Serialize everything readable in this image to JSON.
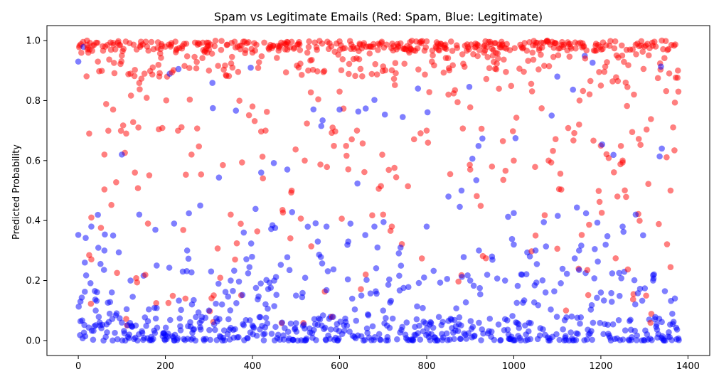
{
  "chart_data": {
    "type": "scatter",
    "title": "Spam vs Legitimate Emails (Red: Spam, Blue: Legitimate)",
    "xlabel": "",
    "ylabel": "Predicted Probability",
    "xlim": [
      -72,
      1450
    ],
    "ylim": [
      -0.05,
      1.05
    ],
    "xticks": [
      0,
      200,
      400,
      600,
      800,
      1000,
      1200,
      1400
    ],
    "yticks": [
      0.0,
      0.2,
      0.4,
      0.6,
      0.8,
      1.0
    ],
    "grid": false,
    "n_points": 1380,
    "series": [
      {
        "color": "#ff0000",
        "alpha": 0.5,
        "points_sample": [
          [
            20,
            1.0
          ],
          [
            25,
            0.69
          ],
          [
            30,
            0.41
          ],
          [
            45,
            0.93
          ],
          [
            60,
            0.62
          ],
          [
            80,
            0.77
          ],
          [
            100,
            0.95
          ],
          [
            110,
            0.69
          ],
          [
            130,
            0.56
          ],
          [
            160,
            0.39
          ],
          [
            200,
            0.98
          ],
          [
            260,
            0.62
          ],
          [
            300,
            0.9
          ],
          [
            350,
            0.42
          ],
          [
            360,
            0.27
          ],
          [
            400,
            0.96
          ],
          [
            430,
            0.7
          ],
          [
            480,
            0.97
          ],
          [
            490,
            0.5
          ],
          [
            520,
            0.6
          ],
          [
            560,
            0.99
          ],
          [
            600,
            0.83
          ],
          [
            640,
            0.7
          ],
          [
            660,
            0.22
          ],
          [
            700,
            0.42
          ],
          [
            720,
            0.38
          ],
          [
            760,
            0.96
          ],
          [
            800,
            0.7
          ],
          [
            850,
            0.82
          ],
          [
            900,
            0.57
          ],
          [
            950,
            0.58
          ],
          [
            1000,
            0.6
          ],
          [
            1050,
            0.35
          ],
          [
            1080,
            0.6
          ],
          [
            1120,
            0.1
          ],
          [
            1150,
            0.72
          ],
          [
            1200,
            0.85
          ],
          [
            1250,
            0.6
          ],
          [
            1300,
            0.98
          ],
          [
            1340,
            1.0
          ],
          [
            1360,
            0.5
          ],
          [
            1378,
            0.83
          ]
        ]
      },
      {
        "color": "#0000ff",
        "alpha": 0.5,
        "points_sample": [
          [
            0,
            0.93
          ],
          [
            5,
            0.13
          ],
          [
            15,
            0.26
          ],
          [
            30,
            0.38
          ],
          [
            40,
            0.1
          ],
          [
            60,
            0.3
          ],
          [
            80,
            0.35
          ],
          [
            100,
            0.62
          ],
          [
            120,
            0.2
          ],
          [
            140,
            0.42
          ],
          [
            180,
            0.25
          ],
          [
            220,
            0.39
          ],
          [
            250,
            0.3
          ],
          [
            280,
            0.45
          ],
          [
            300,
            0.1
          ],
          [
            350,
            0.2
          ],
          [
            380,
            0.36
          ],
          [
            400,
            0.05
          ],
          [
            420,
            0.56
          ],
          [
            450,
            0.2
          ],
          [
            480,
            0.57
          ],
          [
            500,
            0.15
          ],
          [
            550,
            0.33
          ],
          [
            570,
            0.38
          ],
          [
            600,
            0.77
          ],
          [
            620,
            0.33
          ],
          [
            650,
            0.15
          ],
          [
            680,
            0.38
          ],
          [
            700,
            0.1
          ],
          [
            740,
            0.31
          ],
          [
            780,
            0.84
          ],
          [
            800,
            0.38
          ],
          [
            850,
            0.48
          ],
          [
            880,
            0.5
          ],
          [
            900,
            0.2
          ],
          [
            920,
            0.3
          ],
          [
            950,
            0.28
          ],
          [
            980,
            0.2
          ],
          [
            1000,
            0.32
          ],
          [
            1050,
            0.3
          ],
          [
            1100,
            0.88
          ],
          [
            1150,
            0.3
          ],
          [
            1200,
            0.16
          ],
          [
            1250,
            0.38
          ],
          [
            1280,
            0.42
          ],
          [
            1320,
            0.2
          ],
          [
            1340,
            0.64
          ],
          [
            1370,
            0.14
          ]
        ]
      }
    ]
  }
}
